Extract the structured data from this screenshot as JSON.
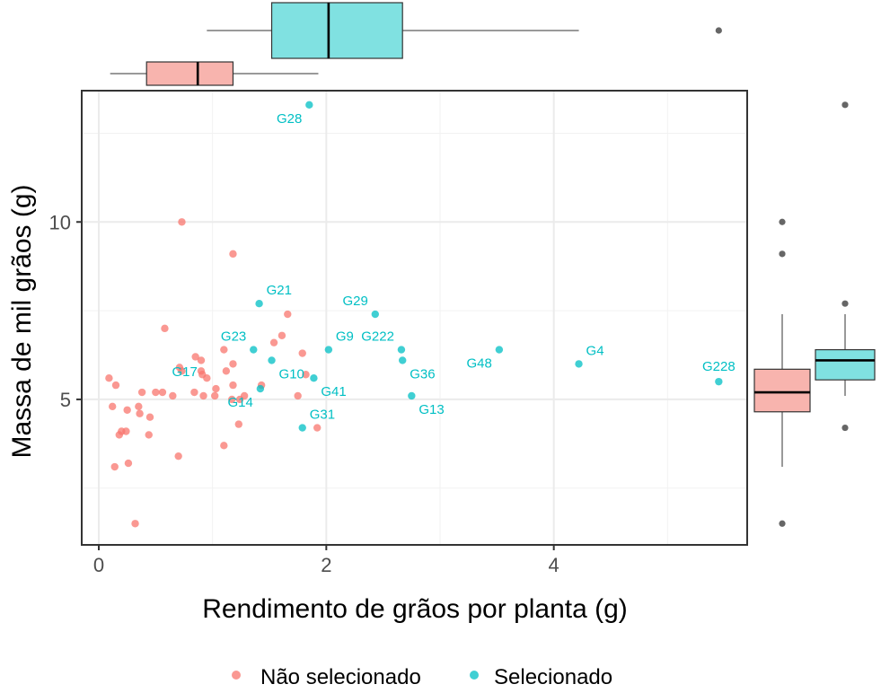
{
  "chart_data": {
    "type": "scatter",
    "title": "",
    "xlabel": "Rendimento de grãos por planta (g)",
    "ylabel": "Massa de mil grãos (g)",
    "xlim": [
      -0.15,
      5.7
    ],
    "ylim": [
      0.9,
      13.7
    ],
    "x_ticks": [
      0,
      2,
      4
    ],
    "x_tick_labels": [
      "0",
      "2",
      "4"
    ],
    "y_ticks": [
      5,
      10
    ],
    "y_tick_labels": [
      "5",
      "10"
    ],
    "grid": true,
    "legend_position": "bottom",
    "colors": {
      "nao_selecionado": "#F8766D",
      "selecionado": "#00BFC4",
      "box_fill_nao": "#F8B4AE",
      "box_fill_sel": "#80E1E1"
    },
    "series": [
      {
        "name": "Não selecionado",
        "key": "nao",
        "points": [
          [
            0.09,
            5.6
          ],
          [
            0.15,
            5.4
          ],
          [
            0.12,
            4.8
          ],
          [
            0.25,
            4.7
          ],
          [
            0.38,
            5.2
          ],
          [
            0.5,
            5.2
          ],
          [
            0.56,
            5.2
          ],
          [
            0.65,
            5.1
          ],
          [
            0.73,
            5.8
          ],
          [
            0.84,
            5.2
          ],
          [
            0.9,
            5.8
          ],
          [
            0.91,
            5.7
          ],
          [
            0.92,
            5.1
          ],
          [
            0.95,
            5.6
          ],
          [
            1.02,
            5.1
          ],
          [
            1.1,
            6.4
          ],
          [
            1.17,
            5.0
          ],
          [
            1.23,
            4.3
          ],
          [
            1.24,
            5.0
          ],
          [
            1.28,
            5.1
          ],
          [
            0.35,
            4.8
          ],
          [
            0.36,
            4.6
          ],
          [
            0.45,
            4.5
          ],
          [
            0.18,
            4.0
          ],
          [
            0.2,
            4.1
          ],
          [
            0.24,
            4.1
          ],
          [
            0.44,
            4.0
          ],
          [
            0.7,
            3.4
          ],
          [
            0.14,
            3.1
          ],
          [
            0.26,
            3.2
          ],
          [
            1.1,
            3.7
          ],
          [
            0.32,
            1.5
          ],
          [
            0.58,
            7.0
          ],
          [
            0.73,
            10.0
          ],
          [
            1.18,
            9.1
          ],
          [
            0.85,
            6.2
          ],
          [
            0.9,
            6.1
          ],
          [
            0.71,
            5.9
          ],
          [
            1.12,
            5.8
          ],
          [
            1.18,
            6.0
          ],
          [
            1.18,
            5.4
          ],
          [
            1.43,
            5.4
          ],
          [
            1.54,
            6.6
          ],
          [
            1.61,
            6.8
          ],
          [
            1.66,
            7.4
          ],
          [
            1.79,
            6.3
          ],
          [
            1.82,
            5.7
          ],
          [
            1.75,
            5.1
          ],
          [
            1.92,
            4.2
          ],
          [
            1.03,
            5.3
          ]
        ]
      },
      {
        "name": "Selecionado",
        "key": "sel",
        "points": [
          [
            1.85,
            13.3
          ],
          [
            1.41,
            7.7
          ],
          [
            2.43,
            7.4
          ],
          [
            1.36,
            6.4
          ],
          [
            2.02,
            6.4
          ],
          [
            2.66,
            6.4
          ],
          [
            2.67,
            6.1
          ],
          [
            3.52,
            6.4
          ],
          [
            4.22,
            6.0
          ],
          [
            5.45,
            5.5
          ],
          [
            1.52,
            6.1
          ],
          [
            1.89,
            5.6
          ],
          [
            1.42,
            5.3
          ],
          [
            2.75,
            5.1
          ],
          [
            1.79,
            4.2
          ]
        ]
      }
    ],
    "annotations": [
      {
        "text": "G28",
        "x": 1.85,
        "y": 13.3,
        "placement": "below-left"
      },
      {
        "text": "G21",
        "x": 1.41,
        "y": 7.7,
        "placement": "above-right"
      },
      {
        "text": "G29",
        "x": 2.43,
        "y": 7.4,
        "placement": "above-left"
      },
      {
        "text": "G23",
        "x": 1.36,
        "y": 6.4,
        "placement": "above-left"
      },
      {
        "text": "G9",
        "x": 2.02,
        "y": 6.4,
        "placement": "above-right"
      },
      {
        "text": "G222",
        "x": 2.66,
        "y": 6.4,
        "placement": "above-left"
      },
      {
        "text": "G48",
        "x": 3.52,
        "y": 6.4,
        "placement": "below-left"
      },
      {
        "text": "G4",
        "x": 4.22,
        "y": 6.0,
        "placement": "above-right"
      },
      {
        "text": "G228",
        "x": 5.45,
        "y": 5.5,
        "placement": "above"
      },
      {
        "text": "G17",
        "x": 0.93,
        "y": 5.4,
        "placement": "above-left"
      },
      {
        "text": "G10",
        "x": 1.52,
        "y": 6.1,
        "placement": "below-right"
      },
      {
        "text": "G36",
        "x": 2.67,
        "y": 6.1,
        "placement": "below-right"
      },
      {
        "text": "G41",
        "x": 1.89,
        "y": 5.6,
        "placement": "below-right"
      },
      {
        "text": "G14",
        "x": 1.42,
        "y": 5.3,
        "placement": "below-left"
      },
      {
        "text": "G13",
        "x": 2.75,
        "y": 5.1,
        "placement": "below-right"
      },
      {
        "text": "G31",
        "x": 1.79,
        "y": 4.2,
        "placement": "above-right"
      }
    ],
    "marginal_boxplots": {
      "x": [
        {
          "group": "nao",
          "whisker_low": 0.1,
          "q1": 0.42,
          "median": 0.87,
          "q3": 1.18,
          "whisker_high": 1.93,
          "outliers": []
        },
        {
          "group": "sel",
          "whisker_low": 0.95,
          "q1": 1.52,
          "median": 2.02,
          "q3": 2.67,
          "whisker_high": 4.22,
          "outliers": [
            5.45
          ]
        }
      ],
      "y": [
        {
          "group": "nao",
          "whisker_low": 3.1,
          "q1": 4.65,
          "median": 5.2,
          "q3": 5.85,
          "whisker_high": 7.4,
          "outliers": [
            1.5,
            9.1,
            10.0
          ]
        },
        {
          "group": "sel",
          "whisker_low": 5.1,
          "q1": 5.55,
          "median": 6.1,
          "q3": 6.4,
          "whisker_high": 7.4,
          "outliers": [
            4.2,
            7.7,
            13.3
          ]
        }
      ]
    },
    "legend": [
      {
        "key": "nao",
        "label": "Não selecionado"
      },
      {
        "key": "sel",
        "label": "Selecionado"
      }
    ]
  }
}
